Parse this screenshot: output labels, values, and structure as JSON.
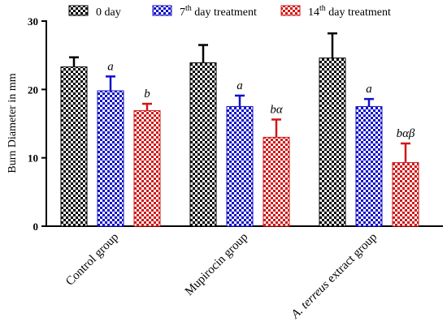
{
  "chart_data": {
    "type": "bar",
    "categories": [
      "Control group",
      "Mupirocin group",
      "A. terreus extract group"
    ],
    "category_label_parts": [
      {
        "italic": "",
        "rest": "Control group"
      },
      {
        "italic": "",
        "rest": "Mupirocin group"
      },
      {
        "italic": "A. terreus",
        "rest": "  extract group"
      }
    ],
    "series": [
      {
        "name": "0 day",
        "legend_main": "0 day",
        "legend_sup": "",
        "legend_after": "",
        "color": "#000000",
        "pattern": "checker",
        "values": [
          23.3,
          23.9,
          24.6
        ],
        "errors": [
          1.4,
          2.6,
          3.6
        ]
      },
      {
        "name": "7th day treatment",
        "legend_main": "7",
        "legend_sup": "th",
        "legend_after": " day treatment",
        "color": "#1010c8",
        "pattern": "checker",
        "values": [
          19.8,
          17.5,
          17.5
        ],
        "errors": [
          2.1,
          1.6,
          1.1
        ]
      },
      {
        "name": "14th day treatment",
        "legend_main": "14",
        "legend_sup": "th",
        "legend_after": " day treatment",
        "color": "#d01818",
        "pattern": "checker",
        "values": [
          16.9,
          13.0,
          9.3
        ],
        "errors": [
          1.0,
          2.6,
          2.8
        ]
      }
    ],
    "significance_labels": [
      [
        "",
        "a",
        "b"
      ],
      [
        "",
        "a",
        "bα"
      ],
      [
        "",
        "a",
        "bαβ"
      ]
    ],
    "ylabel": "Burn Diameter in mm",
    "xlabel": "",
    "ylim": [
      0,
      30
    ],
    "yticks": [
      0,
      10,
      20,
      30
    ],
    "grid": false,
    "legend_position": "top"
  }
}
